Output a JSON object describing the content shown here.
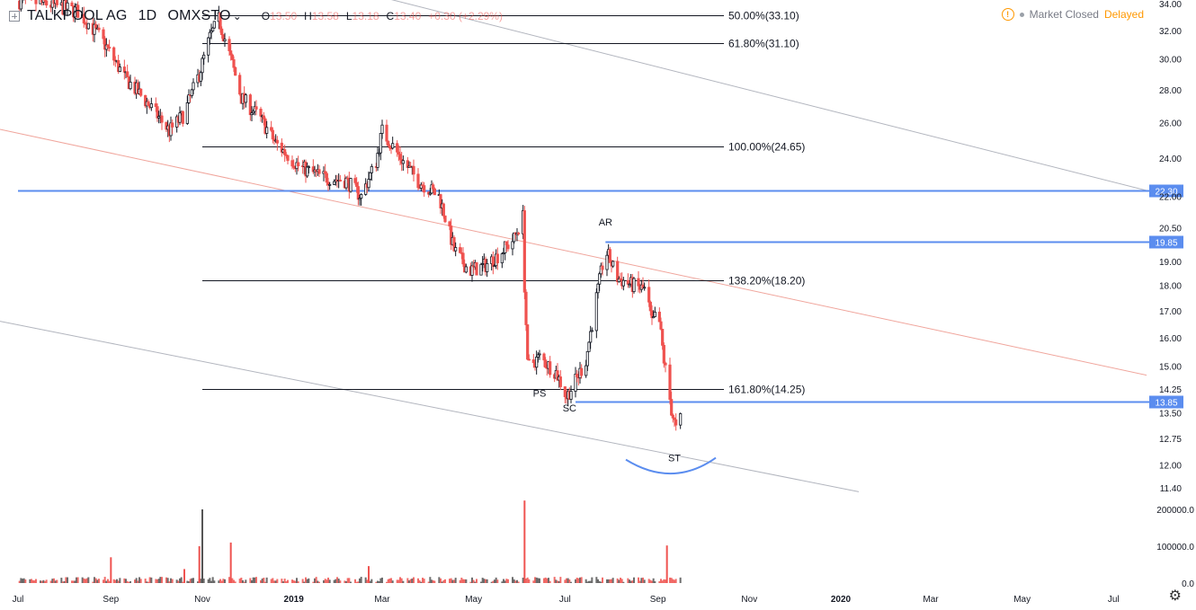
{
  "header": {
    "symbol": "TALKPOOL AG",
    "interval": "1D",
    "exchange": "OMXSTO",
    "ohlc": [
      {
        "k": "O",
        "v": "13.50"
      },
      {
        "k": "H",
        "v": "13.58"
      },
      {
        "k": "L",
        "v": "13.18"
      },
      {
        "k": "C",
        "v": "13.40"
      },
      {
        "k": "",
        "v": "+0.30 (+2.29%)"
      }
    ]
  },
  "status": {
    "market": "Market Closed",
    "delayed": "Delayed",
    "warning_icon": "!"
  },
  "icons": {
    "add": "plus-square-icon",
    "chevron": "chevron-down-icon",
    "settings": "gear-icon"
  },
  "colors": {
    "up": "#131722",
    "down": "#ef5350",
    "volume_up": "#555555",
    "volume_down": "#ef5350",
    "hline": "#5b8def",
    "fib": "#131722",
    "channel": "#b2b5be",
    "midline": "#f0a59c",
    "accent": "#ff9800"
  },
  "chart_data": {
    "type": "candlestick",
    "symbol": "TALKPOOL AG",
    "x_start": "2018-07-01",
    "x_end": "2019-09-30",
    "y_ticks": [
      "34.00",
      "32.00",
      "30.00",
      "28.00",
      "26.00",
      "24.00",
      "22.00",
      "20.50",
      "19.00",
      "18.00",
      "17.00",
      "16.00",
      "15.00",
      "14.25",
      "13.50",
      "12.75",
      "12.00",
      "11.40"
    ],
    "x_ticks": [
      {
        "date": "2018-07-01",
        "label": "Jul"
      },
      {
        "date": "2018-09-01",
        "label": "Sep"
      },
      {
        "date": "2018-11-01",
        "label": "Nov"
      },
      {
        "date": "2019-01-01",
        "label": "2019"
      },
      {
        "date": "2019-03-01",
        "label": "Mar"
      },
      {
        "date": "2019-05-01",
        "label": "May"
      },
      {
        "date": "2019-07-01",
        "label": "Jul"
      },
      {
        "date": "2019-09-01",
        "label": "Sep"
      },
      {
        "date": "2019-11-01",
        "label": "Nov"
      },
      {
        "date": "2020-01-01",
        "label": "2020"
      },
      {
        "date": "2020-03-01",
        "label": "Mar"
      },
      {
        "date": "2020-05-01",
        "label": "May"
      },
      {
        "date": "2020-07-01",
        "label": "Jul"
      },
      {
        "date": "2020-09-01",
        "label": "Sep"
      }
    ],
    "volume_ticks": [
      "200000.0",
      "100000.0",
      "0.0"
    ],
    "price_path": [
      {
        "date": "2018-07-01",
        "price": 34.2
      },
      {
        "date": "2018-07-20",
        "price": 34.0
      },
      {
        "date": "2018-08-10",
        "price": 33.4
      },
      {
        "date": "2018-08-25",
        "price": 31.5
      },
      {
        "date": "2018-09-10",
        "price": 28.8
      },
      {
        "date": "2018-09-25",
        "price": 27.2
      },
      {
        "date": "2018-10-10",
        "price": 25.5
      },
      {
        "date": "2018-10-20",
        "price": 26.5
      },
      {
        "date": "2018-10-30",
        "price": 29.0
      },
      {
        "date": "2018-11-06",
        "price": 31.5
      },
      {
        "date": "2018-11-12",
        "price": 32.8
      },
      {
        "date": "2018-11-20",
        "price": 30.0
      },
      {
        "date": "2018-11-27",
        "price": 27.5
      },
      {
        "date": "2018-12-10",
        "price": 26.2
      },
      {
        "date": "2018-12-20",
        "price": 24.8
      },
      {
        "date": "2019-01-05",
        "price": 23.5
      },
      {
        "date": "2019-01-20",
        "price": 23.0
      },
      {
        "date": "2019-02-05",
        "price": 22.8
      },
      {
        "date": "2019-02-15",
        "price": 22.0
      },
      {
        "date": "2019-02-25",
        "price": 23.8
      },
      {
        "date": "2019-03-01",
        "price": 25.5
      },
      {
        "date": "2019-03-05",
        "price": 25.0
      },
      {
        "date": "2019-03-15",
        "price": 23.8
      },
      {
        "date": "2019-03-25",
        "price": 22.8
      },
      {
        "date": "2019-04-08",
        "price": 22.0
      },
      {
        "date": "2019-04-18",
        "price": 19.5
      },
      {
        "date": "2019-04-28",
        "price": 18.6
      },
      {
        "date": "2019-05-08",
        "price": 18.8
      },
      {
        "date": "2019-05-18",
        "price": 19.3
      },
      {
        "date": "2019-05-28",
        "price": 20.0
      },
      {
        "date": "2019-06-03",
        "price": 21.0
      },
      {
        "date": "2019-06-04",
        "price": 18.0
      },
      {
        "date": "2019-06-06",
        "price": 15.0
      },
      {
        "date": "2019-06-14",
        "price": 15.3
      },
      {
        "date": "2019-06-25",
        "price": 14.8
      },
      {
        "date": "2019-07-02",
        "price": 14.0
      },
      {
        "date": "2019-07-08",
        "price": 14.5
      },
      {
        "date": "2019-07-15",
        "price": 15.2
      },
      {
        "date": "2019-07-22",
        "price": 17.5
      },
      {
        "date": "2019-07-28",
        "price": 19.5
      },
      {
        "date": "2019-08-05",
        "price": 18.3
      },
      {
        "date": "2019-08-15",
        "price": 18.0
      },
      {
        "date": "2019-08-24",
        "price": 17.8
      },
      {
        "date": "2019-08-28",
        "price": 16.5
      },
      {
        "date": "2019-09-01",
        "price": 17.0
      },
      {
        "date": "2019-09-05",
        "price": 15.2
      },
      {
        "date": "2019-09-10",
        "price": 13.6
      },
      {
        "date": "2019-09-13",
        "price": 13.0
      },
      {
        "date": "2019-09-17",
        "price": 13.4
      }
    ],
    "volume_spikes": [
      {
        "date": "2018-09-01",
        "value": 70000
      },
      {
        "date": "2018-10-20",
        "value": 38000
      },
      {
        "date": "2018-10-30",
        "value": 100000
      },
      {
        "date": "2018-11-01",
        "value": 200000
      },
      {
        "date": "2018-11-20",
        "value": 110000
      },
      {
        "date": "2019-02-20",
        "value": 46000
      },
      {
        "date": "2019-06-04",
        "value": 224000
      },
      {
        "date": "2019-09-07",
        "value": 102000
      }
    ],
    "horizontal_levels": [
      {
        "value": 22.3,
        "label": "22.30",
        "start": "2018-07-01"
      },
      {
        "value": 19.85,
        "label": "19.85",
        "start": "2019-07-28"
      },
      {
        "value": 13.85,
        "label": "13.85",
        "start": "2019-07-08"
      }
    ],
    "fib_levels": [
      {
        "label": "50.00%(33.10)",
        "value": 33.1,
        "start": "2018-11-01"
      },
      {
        "label": "61.80%(31.10)",
        "value": 31.1,
        "start": "2018-11-01"
      },
      {
        "label": "100.00%(24.65)",
        "value": 24.65,
        "start": "2018-11-01"
      },
      {
        "label": "138.20%(18.20)",
        "value": 18.2,
        "start": "2018-11-01"
      },
      {
        "label": "161.80%(14.25)",
        "value": 14.25,
        "start": "2018-11-01"
      }
    ],
    "annotations": [
      {
        "text": "AR",
        "date": "2019-07-28",
        "price": 20.6
      },
      {
        "text": "PS",
        "date": "2019-06-14",
        "price": 14.0
      },
      {
        "text": "SC",
        "date": "2019-07-04",
        "price": 13.55
      },
      {
        "text": "ST",
        "date": "2019-09-12",
        "price": 12.1
      }
    ]
  }
}
